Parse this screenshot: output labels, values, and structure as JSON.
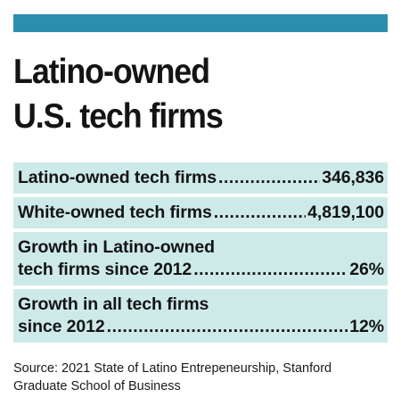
{
  "title_lines": [
    "Latino-owned",
    "U.S. tech firms"
  ],
  "colors": {
    "top_bar": "#2a8fae",
    "row_background": "#cdeae8"
  },
  "chart_data": {
    "type": "table",
    "rows": [
      {
        "label_lines": [
          "Latino-owned tech firms"
        ],
        "value": "346,836"
      },
      {
        "label_lines": [
          "White-owned tech firms"
        ],
        "value": "4,819,100"
      },
      {
        "label_lines": [
          "Growth in Latino-owned",
          "tech firms since 2012"
        ],
        "value": "26%"
      },
      {
        "label_lines": [
          "Growth in all tech firms",
          "since 2012"
        ],
        "value": "12%"
      }
    ]
  },
  "source": {
    "lines": [
      "Source: 2021 State of Latino Entrepeneurship, Stanford",
      "Graduate School of Business"
    ]
  }
}
